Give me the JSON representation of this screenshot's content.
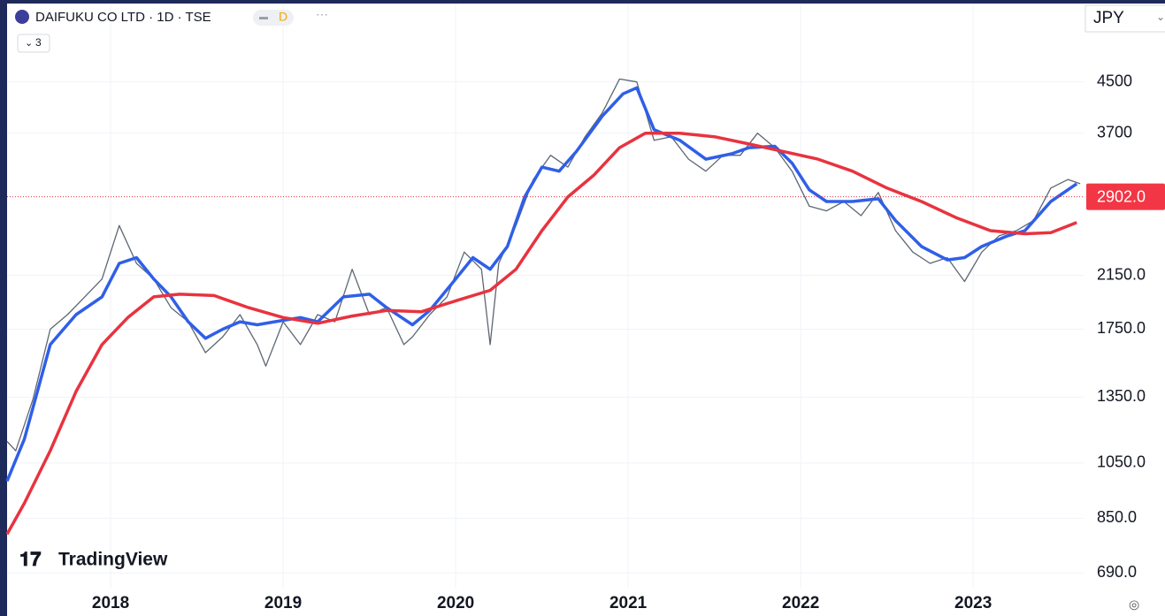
{
  "chart_data": {
    "type": "line",
    "title": "DAIFUKU CO LTD · 1D · TSE",
    "interval_badge": "D",
    "indicator_count": "3",
    "currency": "JPY",
    "watermark": "TradingView",
    "log_scale": true,
    "grid": true,
    "xlim": [
      2017.4,
      2023.64
    ],
    "xticks": [
      2018,
      2019,
      2020,
      2021,
      2022,
      2023
    ],
    "ylim": [
      652,
      6050
    ],
    "yticks": [
      {
        "value": 690,
        "label": "690.0"
      },
      {
        "value": 850,
        "label": "850.0"
      },
      {
        "value": 1050,
        "label": "1050.0"
      },
      {
        "value": 1350,
        "label": "1350.0"
      },
      {
        "value": 1750,
        "label": "1750.0"
      },
      {
        "value": 2150,
        "label": "2150.0"
      },
      3700,
      4500
    ],
    "last_price": {
      "value": 2902,
      "label": "2902.0"
    },
    "series": [
      {
        "color": "#5d6673",
        "x": [
          2017.4,
          2017.45,
          2017.55,
          2017.65,
          2017.75,
          2017.85,
          2017.95,
          2018.05,
          2018.15,
          2018.25,
          2018.35,
          2018.45,
          2018.55,
          2018.65,
          2018.75,
          2018.85,
          2018.9,
          2019.0,
          2019.1,
          2019.2,
          2019.3,
          2019.4,
          2019.5,
          2019.6,
          2019.7,
          2019.75,
          2019.85,
          2019.95,
          2020.05,
          2020.15,
          2020.2,
          2020.25,
          2020.35,
          2020.45,
          2020.55,
          2020.65,
          2020.75,
          2020.85,
          2020.95,
          2021.05,
          2021.15,
          2021.25,
          2021.35,
          2021.45,
          2021.55,
          2021.65,
          2021.75,
          2021.85,
          2021.95,
          2022.05,
          2022.15,
          2022.25,
          2022.35,
          2022.45,
          2022.55,
          2022.65,
          2022.75,
          2022.85,
          2022.95,
          2023.05,
          2023.15,
          2023.25,
          2023.35,
          2023.45,
          2023.55,
          2023.62
        ],
        "values": [
          1140,
          1100,
          1340,
          1750,
          1850,
          1980,
          2120,
          2600,
          2250,
          2120,
          1900,
          1800,
          1600,
          1700,
          1850,
          1650,
          1520,
          1800,
          1650,
          1850,
          1800,
          2200,
          1850,
          1900,
          1650,
          1700,
          1850,
          1980,
          2350,
          2200,
          1650,
          2250,
          2600,
          3100,
          3400,
          3250,
          3650,
          4000,
          4550,
          4500,
          3600,
          3650,
          3350,
          3200,
          3400,
          3400,
          3700,
          3500,
          3200,
          2800,
          2750,
          2850,
          2700,
          2950,
          2550,
          2350,
          2250,
          2300,
          2100,
          2350,
          2500,
          2550,
          2650,
          3000,
          3100,
          3050
        ]
      },
      {
        "color": "#2f5fe8",
        "x": [
          2017.4,
          2017.5,
          2017.65,
          2017.8,
          2017.95,
          2018.05,
          2018.15,
          2018.25,
          2018.35,
          2018.45,
          2018.55,
          2018.65,
          2018.75,
          2018.85,
          2018.95,
          2019.1,
          2019.2,
          2019.35,
          2019.5,
          2019.6,
          2019.75,
          2019.85,
          2020.0,
          2020.1,
          2020.2,
          2020.3,
          2020.4,
          2020.5,
          2020.6,
          2020.7,
          2020.85,
          2020.97,
          2021.05,
          2021.15,
          2021.3,
          2021.45,
          2021.6,
          2021.7,
          2021.85,
          2021.95,
          2022.05,
          2022.15,
          2022.3,
          2022.45,
          2022.55,
          2022.7,
          2022.85,
          2022.95,
          2023.05,
          2023.2,
          2023.3,
          2023.45,
          2023.6
        ],
        "values": [
          980,
          1150,
          1650,
          1850,
          1980,
          2250,
          2300,
          2120,
          1980,
          1800,
          1690,
          1750,
          1800,
          1780,
          1800,
          1830,
          1800,
          1980,
          2000,
          1900,
          1780,
          1880,
          2120,
          2300,
          2200,
          2400,
          2900,
          3250,
          3200,
          3450,
          3950,
          4300,
          4400,
          3750,
          3600,
          3350,
          3420,
          3500,
          3520,
          3300,
          2980,
          2850,
          2850,
          2880,
          2650,
          2400,
          2280,
          2300,
          2400,
          2500,
          2550,
          2850,
          3050
        ]
      },
      {
        "color": "#e8333f",
        "x": [
          2017.4,
          2017.5,
          2017.65,
          2017.8,
          2017.95,
          2018.1,
          2018.25,
          2018.4,
          2018.6,
          2018.8,
          2019.0,
          2019.2,
          2019.4,
          2019.6,
          2019.8,
          2020.0,
          2020.2,
          2020.35,
          2020.5,
          2020.65,
          2020.8,
          2020.95,
          2021.1,
          2021.3,
          2021.5,
          2021.7,
          2021.9,
          2022.1,
          2022.3,
          2022.5,
          2022.7,
          2022.9,
          2023.1,
          2023.3,
          2023.45,
          2023.6
        ],
        "values": [
          800,
          900,
          1100,
          1380,
          1650,
          1830,
          1980,
          2000,
          1990,
          1900,
          1830,
          1790,
          1840,
          1880,
          1870,
          1950,
          2030,
          2200,
          2550,
          2900,
          3150,
          3500,
          3700,
          3700,
          3650,
          3550,
          3450,
          3350,
          3200,
          3000,
          2850,
          2680,
          2550,
          2520,
          2530,
          2630
        ]
      }
    ]
  }
}
